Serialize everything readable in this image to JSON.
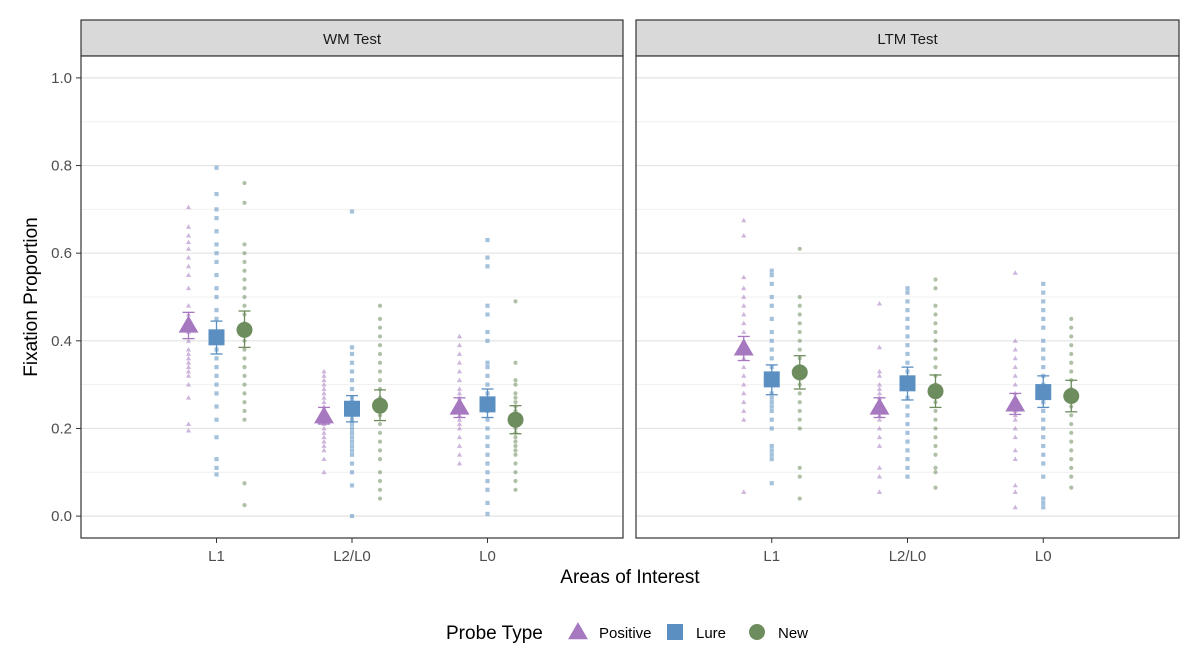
{
  "chart_data": {
    "type": "scatter",
    "ylabel": "Fixation Proportion",
    "xlabel": "Areas of Interest",
    "ylim": [
      -0.05,
      1.05
    ],
    "yticks": [
      0.0,
      0.2,
      0.4,
      0.6,
      0.8,
      1.0
    ],
    "ytick_labels": [
      "0.0",
      "0.2",
      "0.4",
      "0.6",
      "0.8",
      "1.0"
    ],
    "categories": [
      "L1",
      "L2/L0",
      "L0"
    ],
    "legend": {
      "title": "Probe Type",
      "position": "bottom",
      "entries": [
        {
          "name": "Positive",
          "shape": "triangle",
          "color": "#a678c0"
        },
        {
          "name": "Lure",
          "shape": "square",
          "color": "#5b8fc1"
        },
        {
          "name": "New",
          "shape": "circle",
          "color": "#6e8d5f"
        }
      ]
    },
    "panels": [
      {
        "title": "WM Test",
        "series": [
          {
            "name": "Positive",
            "means": [
              0.435,
              0.228,
              0.248
            ],
            "ci_low": [
              0.405,
              0.21,
              0.225
            ],
            "ci_high": [
              0.465,
              0.248,
              0.27
            ],
            "points": [
              [
                0.705,
                0.66,
                0.64,
                0.625,
                0.61,
                0.59,
                0.57,
                0.55,
                0.52,
                0.48,
                0.46,
                0.44,
                0.42,
                0.4,
                0.38,
                0.37,
                0.36,
                0.35,
                0.34,
                0.33,
                0.32,
                0.3,
                0.27,
                0.21,
                0.195
              ],
              [
                0.33,
                0.32,
                0.31,
                0.3,
                0.29,
                0.28,
                0.27,
                0.26,
                0.25,
                0.24,
                0.23,
                0.22,
                0.21,
                0.2,
                0.19,
                0.18,
                0.17,
                0.16,
                0.15,
                0.13,
                0.1
              ],
              [
                0.41,
                0.39,
                0.37,
                0.35,
                0.33,
                0.31,
                0.29,
                0.28,
                0.27,
                0.26,
                0.25,
                0.24,
                0.23,
                0.22,
                0.21,
                0.2,
                0.18,
                0.16,
                0.14,
                0.12
              ]
            ]
          },
          {
            "name": "Lure",
            "means": [
              0.408,
              0.245,
              0.255
            ],
            "ci_low": [
              0.37,
              0.215,
              0.225
            ],
            "ci_high": [
              0.445,
              0.275,
              0.29
            ],
            "points": [
              [
                0.795,
                0.735,
                0.7,
                0.68,
                0.65,
                0.62,
                0.6,
                0.58,
                0.55,
                0.52,
                0.5,
                0.47,
                0.45,
                0.42,
                0.4,
                0.38,
                0.36,
                0.34,
                0.32,
                0.3,
                0.28,
                0.25,
                0.22,
                0.18,
                0.13,
                0.11,
                0.095
              ],
              [
                0.695,
                0.385,
                0.37,
                0.35,
                0.33,
                0.31,
                0.29,
                0.27,
                0.26,
                0.25,
                0.24,
                0.23,
                0.22,
                0.21,
                0.2,
                0.19,
                0.18,
                0.17,
                0.16,
                0.15,
                0.14,
                0.12,
                0.1,
                0.07,
                0.0
              ],
              [
                0.63,
                0.59,
                0.57,
                0.48,
                0.46,
                0.42,
                0.4,
                0.35,
                0.34,
                0.32,
                0.3,
                0.28,
                0.26,
                0.24,
                0.22,
                0.2,
                0.18,
                0.16,
                0.14,
                0.12,
                0.1,
                0.08,
                0.06,
                0.03,
                0.005
              ]
            ]
          },
          {
            "name": "New",
            "means": [
              0.425,
              0.252,
              0.22
            ],
            "ci_low": [
              0.385,
              0.218,
              0.188
            ],
            "ci_high": [
              0.468,
              0.288,
              0.252
            ],
            "points": [
              [
                0.76,
                0.715,
                0.62,
                0.6,
                0.58,
                0.56,
                0.54,
                0.52,
                0.5,
                0.48,
                0.46,
                0.44,
                0.42,
                0.4,
                0.38,
                0.36,
                0.34,
                0.32,
                0.3,
                0.28,
                0.26,
                0.24,
                0.22,
                0.075,
                0.025
              ],
              [
                0.48,
                0.45,
                0.43,
                0.41,
                0.39,
                0.37,
                0.35,
                0.33,
                0.31,
                0.29,
                0.27,
                0.25,
                0.23,
                0.21,
                0.19,
                0.17,
                0.15,
                0.13,
                0.1,
                0.08,
                0.06,
                0.04
              ],
              [
                0.49,
                0.35,
                0.31,
                0.3,
                0.28,
                0.27,
                0.26,
                0.25,
                0.24,
                0.23,
                0.22,
                0.21,
                0.2,
                0.19,
                0.18,
                0.17,
                0.16,
                0.15,
                0.14,
                0.12,
                0.1,
                0.08,
                0.06
              ]
            ]
          }
        ]
      },
      {
        "title": "LTM Test",
        "series": [
          {
            "name": "Positive",
            "means": [
              0.383,
              0.248,
              0.255
            ],
            "ci_low": [
              0.355,
              0.225,
              0.232
            ],
            "ci_high": [
              0.41,
              0.27,
              0.28
            ],
            "points": [
              [
                0.675,
                0.64,
                0.545,
                0.52,
                0.5,
                0.48,
                0.46,
                0.44,
                0.42,
                0.4,
                0.38,
                0.36,
                0.34,
                0.32,
                0.3,
                0.28,
                0.26,
                0.24,
                0.22,
                0.055
              ],
              [
                0.485,
                0.385,
                0.33,
                0.32,
                0.3,
                0.29,
                0.28,
                0.27,
                0.26,
                0.25,
                0.24,
                0.23,
                0.22,
                0.2,
                0.18,
                0.16,
                0.11,
                0.09,
                0.055
              ],
              [
                0.555,
                0.4,
                0.38,
                0.36,
                0.34,
                0.32,
                0.3,
                0.28,
                0.27,
                0.26,
                0.25,
                0.24,
                0.23,
                0.22,
                0.2,
                0.18,
                0.15,
                0.13,
                0.07,
                0.055,
                0.02
              ]
            ]
          },
          {
            "name": "Lure",
            "means": [
              0.312,
              0.303,
              0.283
            ],
            "ci_low": [
              0.277,
              0.265,
              0.248
            ],
            "ci_high": [
              0.345,
              0.34,
              0.32
            ],
            "points": [
              [
                0.56,
                0.55,
                0.53,
                0.5,
                0.48,
                0.45,
                0.42,
                0.4,
                0.38,
                0.36,
                0.34,
                0.32,
                0.3,
                0.28,
                0.27,
                0.26,
                0.25,
                0.24,
                0.22,
                0.2,
                0.16,
                0.15,
                0.14,
                0.13,
                0.075
              ],
              [
                0.52,
                0.51,
                0.49,
                0.47,
                0.45,
                0.43,
                0.41,
                0.39,
                0.37,
                0.35,
                0.33,
                0.31,
                0.29,
                0.27,
                0.25,
                0.23,
                0.21,
                0.19,
                0.17,
                0.15,
                0.13,
                0.11,
                0.09
              ],
              [
                0.53,
                0.51,
                0.49,
                0.47,
                0.45,
                0.43,
                0.4,
                0.38,
                0.36,
                0.34,
                0.32,
                0.3,
                0.28,
                0.26,
                0.24,
                0.22,
                0.2,
                0.18,
                0.16,
                0.14,
                0.12,
                0.09,
                0.04,
                0.03,
                0.02
              ]
            ]
          },
          {
            "name": "New",
            "means": [
              0.328,
              0.285,
              0.274
            ],
            "ci_low": [
              0.29,
              0.248,
              0.238
            ],
            "ci_high": [
              0.366,
              0.322,
              0.31
            ],
            "points": [
              [
                0.61,
                0.5,
                0.48,
                0.46,
                0.44,
                0.42,
                0.4,
                0.38,
                0.36,
                0.34,
                0.32,
                0.3,
                0.28,
                0.26,
                0.24,
                0.22,
                0.2,
                0.11,
                0.09,
                0.04
              ],
              [
                0.54,
                0.52,
                0.48,
                0.46,
                0.44,
                0.42,
                0.4,
                0.38,
                0.36,
                0.34,
                0.32,
                0.3,
                0.28,
                0.26,
                0.24,
                0.22,
                0.2,
                0.18,
                0.16,
                0.14,
                0.11,
                0.1,
                0.065
              ],
              [
                0.45,
                0.43,
                0.41,
                0.39,
                0.37,
                0.35,
                0.33,
                0.31,
                0.29,
                0.27,
                0.25,
                0.23,
                0.21,
                0.19,
                0.17,
                0.15,
                0.13,
                0.11,
                0.09,
                0.065
              ]
            ]
          }
        ]
      }
    ]
  }
}
